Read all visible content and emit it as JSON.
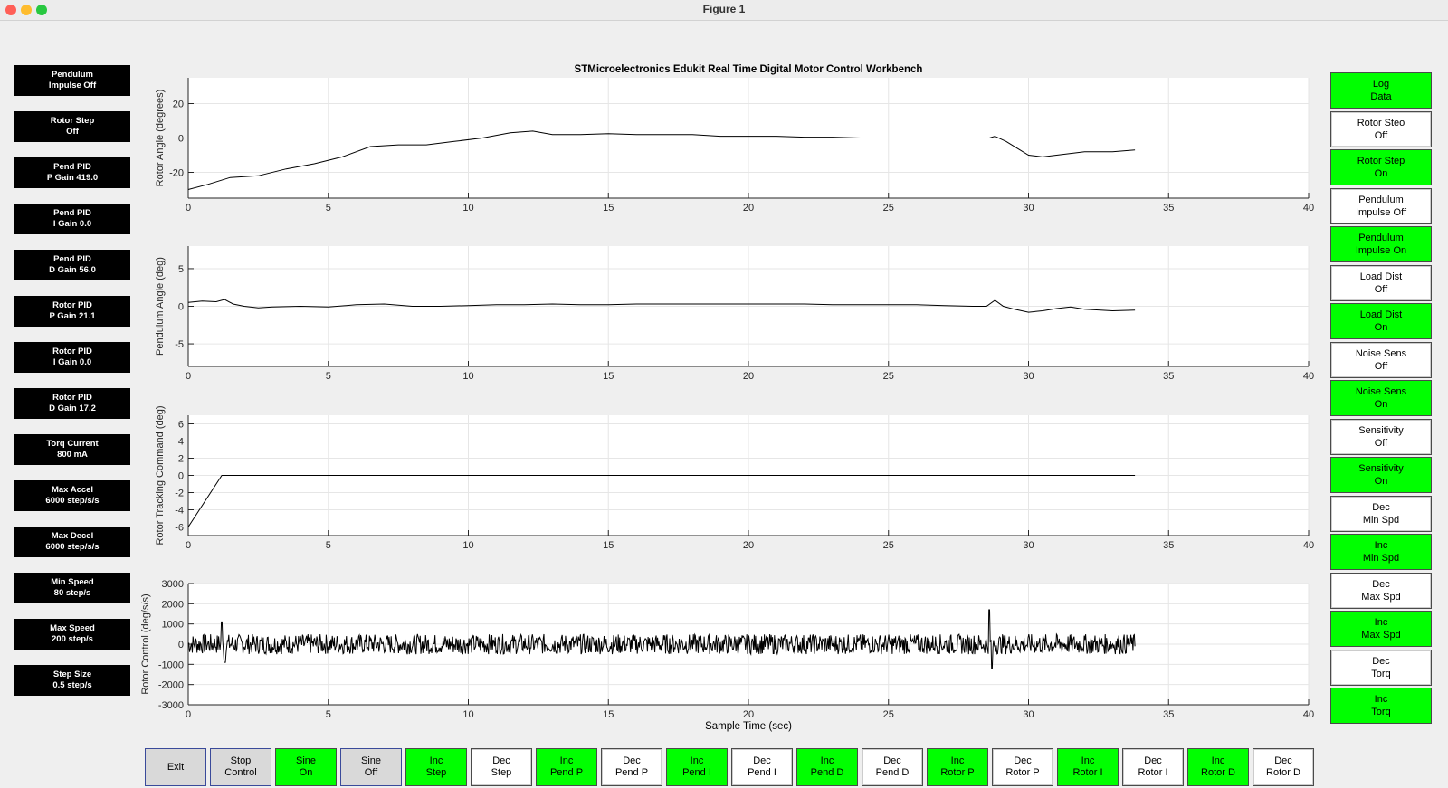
{
  "window": {
    "title": "Figure 1",
    "traffic_lights": [
      "#ff5f57",
      "#febc2e",
      "#28c840"
    ]
  },
  "figure": {
    "title": "STMicroelectronics Edukit Real Time Digital Motor Control Workbench",
    "xlabel": "Sample Time (sec)"
  },
  "left_panel": [
    "Pendulum\nImpulse Off",
    "Rotor Step\nOff",
    "Pend PID\nP Gain 419.0",
    "Pend PID\nI Gain 0.0",
    "Pend PID\nD Gain 56.0",
    "Rotor PID\nP Gain 21.1",
    "Rotor PID\nI Gain 0.0",
    "Rotor PID\nD Gain 17.2",
    "Torq Current\n800 mA",
    "Max Accel\n6000 step/s/s",
    "Max Decel\n6000 step/s/s",
    "Min Speed\n80 step/s",
    "Max Speed\n200 step/s",
    "Step Size\n0.5 step/s"
  ],
  "right_panel": [
    {
      "label": "Log\nData",
      "color": "green"
    },
    {
      "label": "Rotor Steo\nOff",
      "color": "white"
    },
    {
      "label": "Rotor Step\nOn",
      "color": "green"
    },
    {
      "label": "Pendulum\nImpulse Off",
      "color": "white"
    },
    {
      "label": "Pendulum\nImpulse On",
      "color": "green"
    },
    {
      "label": "Load Dist\nOff",
      "color": "white"
    },
    {
      "label": "Load Dist\nOn",
      "color": "green"
    },
    {
      "label": "Noise Sens\nOff",
      "color": "white"
    },
    {
      "label": "Noise Sens\nOn",
      "color": "green"
    },
    {
      "label": "Sensitivity\nOff",
      "color": "white"
    },
    {
      "label": "Sensitivity\nOn",
      "color": "green"
    },
    {
      "label": "Dec\nMin Spd",
      "color": "white"
    },
    {
      "label": "Inc\nMin Spd",
      "color": "green"
    },
    {
      "label": "Dec\nMax Spd",
      "color": "white"
    },
    {
      "label": "Inc\nMax Spd",
      "color": "green"
    },
    {
      "label": "Dec\nTorq",
      "color": "white"
    },
    {
      "label": "Inc\nTorq",
      "color": "green"
    }
  ],
  "bottom_panel": [
    {
      "label": "Exit",
      "color": "gray"
    },
    {
      "label": "Stop\nControl",
      "color": "gray"
    },
    {
      "label": "Sine\nOn",
      "color": "green"
    },
    {
      "label": "Sine\nOff",
      "color": "gray"
    },
    {
      "label": "Inc\nStep",
      "color": "green"
    },
    {
      "label": "Dec\nStep",
      "color": "white"
    },
    {
      "label": "Inc\nPend P",
      "color": "green"
    },
    {
      "label": "Dec\nPend P",
      "color": "white"
    },
    {
      "label": "Inc\nPend I",
      "color": "green"
    },
    {
      "label": "Dec\nPend I",
      "color": "white"
    },
    {
      "label": "Inc\nPend D",
      "color": "green"
    },
    {
      "label": "Dec\nPend D",
      "color": "white"
    },
    {
      "label": "Inc\nRotor P",
      "color": "green"
    },
    {
      "label": "Dec\nRotor P",
      "color": "white"
    },
    {
      "label": "Inc\nRotor I",
      "color": "green"
    },
    {
      "label": "Dec\nRotor I",
      "color": "white"
    },
    {
      "label": "Inc\nRotor D",
      "color": "green"
    },
    {
      "label": "Dec\nRotor D",
      "color": "white"
    }
  ],
  "colors": {
    "green": "#00ff00",
    "white": "#ffffff",
    "gray": "#d9d9d9",
    "black": "#000000"
  },
  "chart_data": [
    {
      "type": "line",
      "ylabel": "Rotor Angle (degrees)",
      "xlim": [
        0,
        40
      ],
      "ylim": [
        -35,
        35
      ],
      "yticks": [
        -20,
        0,
        20
      ],
      "xticks": [
        0,
        5,
        10,
        15,
        20,
        25,
        30,
        35,
        40
      ],
      "grid": true,
      "series": [
        {
          "x": [
            0,
            0.7,
            1.5,
            2.5,
            3.5,
            4.5,
            5.5,
            6.5,
            7.5,
            8.5,
            9.5,
            10.5,
            11.5,
            12.3,
            13,
            14,
            15,
            16,
            17,
            18,
            19,
            20,
            21,
            22,
            23,
            24,
            25,
            26,
            27,
            28,
            28.6,
            28.8,
            29.2,
            29.6,
            30,
            30.5,
            31,
            32,
            33,
            33.8
          ],
          "y": [
            -30,
            -27,
            -23,
            -22,
            -18,
            -15,
            -11,
            -5,
            -4,
            -4,
            -2,
            0,
            3,
            4,
            2,
            2,
            2.5,
            2,
            2,
            2,
            1,
            1,
            1,
            0.5,
            0.5,
            0,
            0,
            0,
            0,
            0,
            0,
            1,
            -2,
            -6,
            -10,
            -11,
            -10,
            -8,
            -8,
            -7
          ]
        }
      ]
    },
    {
      "type": "line",
      "ylabel": "Pendulum Angle (deg)",
      "xlim": [
        0,
        40
      ],
      "ylim": [
        -8,
        8
      ],
      "yticks": [
        -5,
        0,
        5
      ],
      "xticks": [
        0,
        5,
        10,
        15,
        20,
        25,
        30,
        35,
        40
      ],
      "grid": true,
      "series": [
        {
          "x": [
            0,
            0.5,
            1,
            1.3,
            1.6,
            2,
            2.5,
            3,
            4,
            5,
            6,
            7,
            8,
            9,
            10,
            11,
            12,
            13,
            14,
            15,
            16,
            17,
            18,
            19,
            20,
            21,
            22,
            23,
            24,
            25,
            26,
            27,
            28,
            28.5,
            28.8,
            29.1,
            29.5,
            30,
            30.5,
            31,
            31.5,
            32,
            33,
            33.8
          ],
          "y": [
            0.5,
            0.7,
            0.6,
            0.9,
            0.3,
            0,
            -0.2,
            -0.1,
            0,
            -0.1,
            0.2,
            0.3,
            0,
            0,
            0.1,
            0.2,
            0.2,
            0.3,
            0.2,
            0.2,
            0.3,
            0.3,
            0.3,
            0.3,
            0.3,
            0.3,
            0.3,
            0.2,
            0.2,
            0.2,
            0.2,
            0.1,
            0,
            0,
            0.8,
            0,
            -0.4,
            -0.8,
            -0.6,
            -0.3,
            -0.1,
            -0.4,
            -0.6,
            -0.5
          ]
        }
      ]
    },
    {
      "type": "line",
      "ylabel": "Rotor Tracking Command (deg)",
      "xlim": [
        0,
        40
      ],
      "ylim": [
        -7,
        7
      ],
      "yticks": [
        -6,
        -4,
        -2,
        0,
        2,
        4,
        6
      ],
      "xticks": [
        0,
        5,
        10,
        15,
        20,
        25,
        30,
        35,
        40
      ],
      "grid": true,
      "series": [
        {
          "x": [
            0,
            1.2,
            33.8
          ],
          "y": [
            -6,
            0,
            0
          ]
        }
      ]
    },
    {
      "type": "line",
      "ylabel": "Rotor Control (deg/s/s)",
      "xlabel": "Sample Time (sec)",
      "xlim": [
        0,
        40
      ],
      "ylim": [
        -3000,
        3000
      ],
      "yticks": [
        -3000,
        -2000,
        -1000,
        0,
        1000,
        2000,
        3000
      ],
      "xticks": [
        0,
        5,
        10,
        15,
        20,
        25,
        30,
        35,
        40
      ],
      "grid": true,
      "noise_amplitude": 500,
      "series": [
        {
          "x_range": [
            0,
            33.8
          ],
          "y_peaks": [
            {
              "x": 1.2,
              "y": 1100
            },
            {
              "x": 1.3,
              "y": -900
            },
            {
              "x": 28.6,
              "y": 1700
            },
            {
              "x": 28.7,
              "y": -1200
            }
          ]
        }
      ]
    }
  ]
}
